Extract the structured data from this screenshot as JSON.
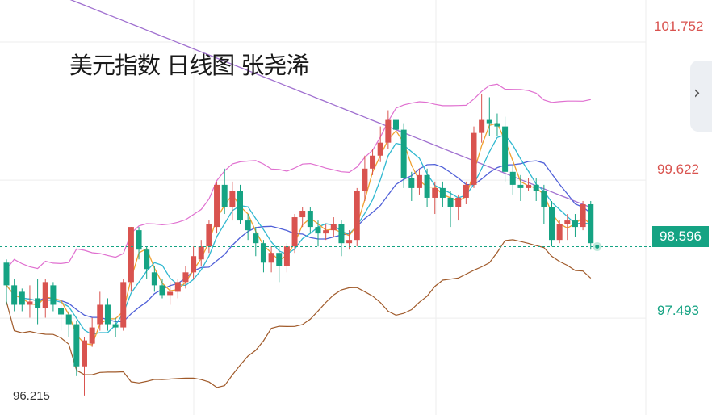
{
  "title": "美元指数 日线图 张尧浠",
  "axis_labels": [
    {
      "value": "101.752",
      "color": "#d9534f"
    },
    {
      "value": "99.622",
      "color": "#d9534f"
    },
    {
      "value": "97.493",
      "color": "#15a383"
    }
  ],
  "current_price": "98.596",
  "low_label": "96.215",
  "side_tab_icon": "chevron-right-icon",
  "colors": {
    "up": "#d9534f",
    "down": "#15a383",
    "ma_fast": "#f0a030",
    "ma_mid": "#30b8d0",
    "ma_slow": "#5060d8",
    "ma_long": "#a070d0",
    "bb_upper": "#e070d0",
    "bb_lower": "#a05a2a",
    "price_tag": "#15a383"
  },
  "chart_data": {
    "type": "candlestick",
    "title": "美元指数 日线图 张尧浠",
    "y_ticks": [
      101.752,
      99.622,
      97.493
    ],
    "ylim": [
      96.0,
      102.4
    ],
    "last_price": 98.596,
    "marked_low": 96.215,
    "candles": [
      [
        98.35,
        98.0,
        98.4,
        97.7
      ],
      [
        98.0,
        97.7,
        98.1,
        97.6
      ],
      [
        97.9,
        97.7,
        97.95,
        97.6
      ],
      [
        97.7,
        97.75,
        98.0,
        97.5
      ],
      [
        97.8,
        97.65,
        98.1,
        97.4
      ],
      [
        97.65,
        98.05,
        98.1,
        97.5
      ],
      [
        98.0,
        97.7,
        98.05,
        97.6
      ],
      [
        97.65,
        97.55,
        97.7,
        97.3
      ],
      [
        97.55,
        97.4,
        97.6,
        97.2
      ],
      [
        97.4,
        96.75,
        97.45,
        96.6
      ],
      [
        96.75,
        97.15,
        97.2,
        96.3
      ],
      [
        97.1,
        97.35,
        97.5,
        97.05
      ],
      [
        97.4,
        97.7,
        97.9,
        97.3
      ],
      [
        97.7,
        97.4,
        97.8,
        97.3
      ],
      [
        97.4,
        97.35,
        97.5,
        97.2
      ],
      [
        97.35,
        98.05,
        98.1,
        97.3
      ],
      [
        98.05,
        98.9,
        98.9,
        97.9
      ],
      [
        98.85,
        98.55,
        98.9,
        98.4
      ],
      [
        98.55,
        98.25,
        98.6,
        98.1
      ],
      [
        98.2,
        98.0,
        98.3,
        97.9
      ],
      [
        98.0,
        97.85,
        98.1,
        97.8
      ],
      [
        97.85,
        97.9,
        98.05,
        97.7
      ],
      [
        97.9,
        98.05,
        98.1,
        97.8
      ],
      [
        98.05,
        98.2,
        98.3,
        97.95
      ],
      [
        98.2,
        98.45,
        98.6,
        98.1
      ],
      [
        98.4,
        98.6,
        98.7,
        98.3
      ],
      [
        98.6,
        98.95,
        99.0,
        98.5
      ],
      [
        98.9,
        99.55,
        99.6,
        98.8
      ],
      [
        99.55,
        99.2,
        99.8,
        99.1
      ],
      [
        99.2,
        99.45,
        99.6,
        99.0
      ],
      [
        99.45,
        99.0,
        99.55,
        98.95
      ],
      [
        99.0,
        98.85,
        99.1,
        98.7
      ],
      [
        98.8,
        98.65,
        98.9,
        98.45
      ],
      [
        98.65,
        98.35,
        98.7,
        98.2
      ],
      [
        98.35,
        98.5,
        98.6,
        98.2
      ],
      [
        98.5,
        98.3,
        98.6,
        98.05
      ],
      [
        98.3,
        98.6,
        98.65,
        98.2
      ],
      [
        98.6,
        99.05,
        99.1,
        98.5
      ],
      [
        99.05,
        99.15,
        99.2,
        98.9
      ],
      [
        99.15,
        98.9,
        99.2,
        98.8
      ],
      [
        98.9,
        98.8,
        99.0,
        98.6
      ],
      [
        98.8,
        98.85,
        98.95,
        98.7
      ],
      [
        98.85,
        98.95,
        99.05,
        98.75
      ],
      [
        98.95,
        98.65,
        99.0,
        98.45
      ],
      [
        98.65,
        98.7,
        98.85,
        98.55
      ],
      [
        98.7,
        99.45,
        99.5,
        98.6
      ],
      [
        99.45,
        99.8,
        100.0,
        99.3
      ],
      [
        99.8,
        100.0,
        100.1,
        99.7
      ],
      [
        100.0,
        100.2,
        100.45,
        99.9
      ],
      [
        100.2,
        100.55,
        100.7,
        100.1
      ],
      [
        100.55,
        100.4,
        100.85,
        100.3
      ],
      [
        100.4,
        99.65,
        100.5,
        99.5
      ],
      [
        99.65,
        99.5,
        99.75,
        99.3
      ],
      [
        99.5,
        99.7,
        99.8,
        99.4
      ],
      [
        99.7,
        99.35,
        99.8,
        99.2
      ],
      [
        99.35,
        99.5,
        99.6,
        99.1
      ],
      [
        99.5,
        99.35,
        99.6,
        99.2
      ],
      [
        99.35,
        99.2,
        99.45,
        98.9
      ],
      [
        99.2,
        99.35,
        99.4,
        99.0
      ],
      [
        99.35,
        99.55,
        99.6,
        99.25
      ],
      [
        99.55,
        100.35,
        100.45,
        99.5
      ],
      [
        100.35,
        100.55,
        100.95,
        100.2
      ],
      [
        100.55,
        100.5,
        100.9,
        100.3
      ],
      [
        100.5,
        100.45,
        100.65,
        100.3
      ],
      [
        100.45,
        99.75,
        100.6,
        99.6
      ],
      [
        99.75,
        99.55,
        99.85,
        99.4
      ],
      [
        99.55,
        99.5,
        99.7,
        99.3
      ],
      [
        99.5,
        99.55,
        99.65,
        99.45
      ],
      [
        99.55,
        99.45,
        99.65,
        99.3
      ],
      [
        99.45,
        99.2,
        99.55,
        98.95
      ],
      [
        99.2,
        98.7,
        99.3,
        98.6
      ],
      [
        98.7,
        98.95,
        99.0,
        98.65
      ],
      [
        98.95,
        99.0,
        99.1,
        98.7
      ],
      [
        99.0,
        98.9,
        99.1,
        98.75
      ],
      [
        98.9,
        99.25,
        99.3,
        98.85
      ],
      [
        99.25,
        98.65,
        99.3,
        98.55
      ]
    ]
  }
}
